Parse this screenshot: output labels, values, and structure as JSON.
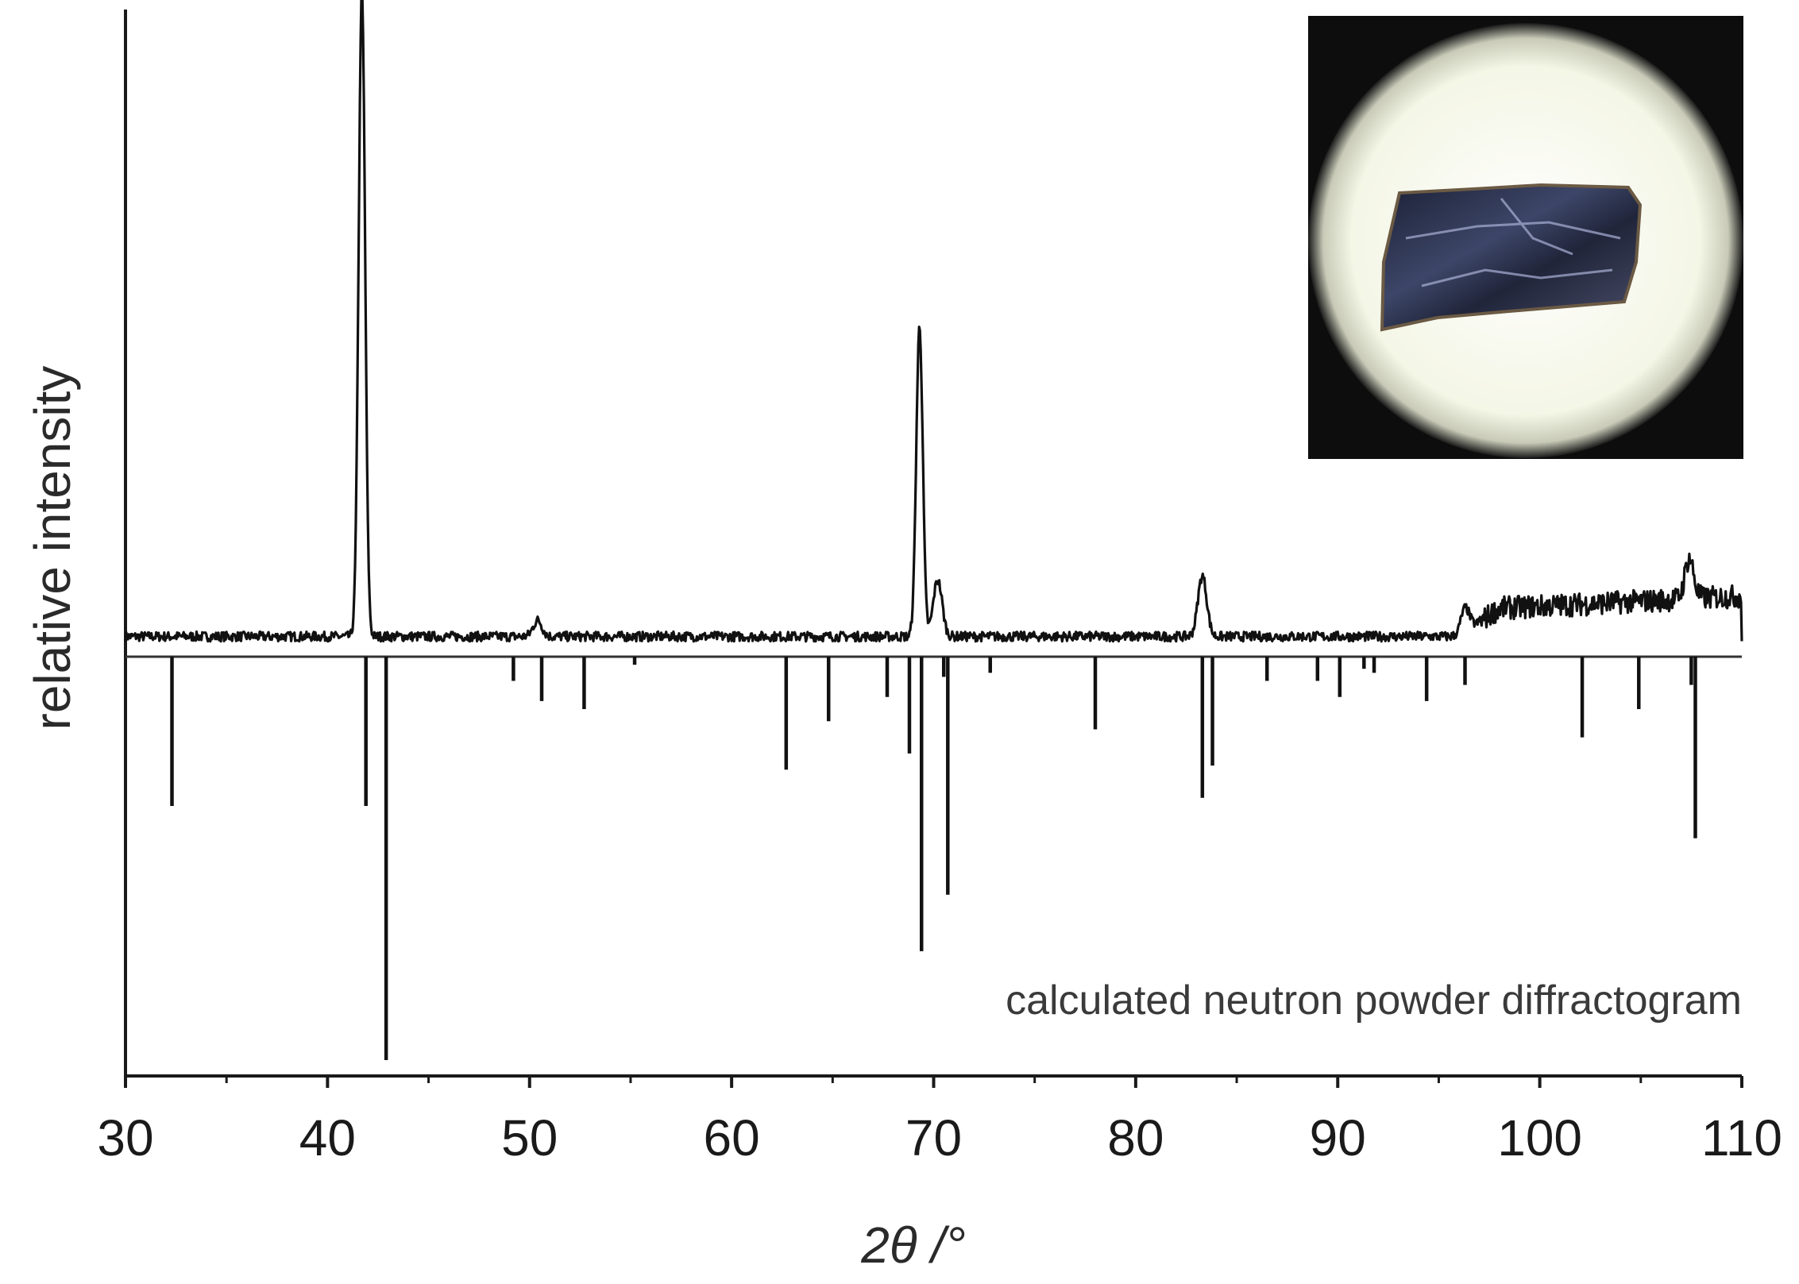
{
  "chart_data": {
    "type": "line",
    "xlabel": "2θ /°",
    "ylabel": "relative intensity",
    "xlim": [
      30,
      110
    ],
    "x_ticks": [
      30,
      40,
      50,
      60,
      70,
      80,
      90,
      100,
      110
    ],
    "x_tick_labels": [
      "30",
      "40",
      "50",
      "60",
      "70",
      "80",
      "90",
      "100",
      "110"
    ],
    "y_ticks": [],
    "ylim": [
      -1.0,
      1.6
    ],
    "grid": false,
    "annotation": "calculated neutron powder diffractogram",
    "series": [
      {
        "role": "measured",
        "baseline": 0.05,
        "noise_amplitude": 0.012,
        "background_rise": [
          [
            30,
            0.0
          ],
          [
            96,
            0.0
          ],
          [
            98,
            0.07
          ],
          [
            110,
            0.1
          ]
        ],
        "peaks": [
          {
            "x": 41.7,
            "y": 1.6
          },
          {
            "x": 69.3,
            "y": 0.77
          },
          {
            "x": 70.2,
            "y": 0.14
          },
          {
            "x": 83.3,
            "y": 0.15
          },
          {
            "x": 107.4,
            "y": 0.1
          },
          {
            "x": 50.4,
            "y": 0.04
          },
          {
            "x": 96.3,
            "y": 0.06
          }
        ]
      },
      {
        "role": "calculated",
        "sticks": [
          {
            "x": 32.3,
            "y": -0.37
          },
          {
            "x": 41.9,
            "y": -0.37
          },
          {
            "x": 42.9,
            "y": -1.0
          },
          {
            "x": 49.2,
            "y": -0.06
          },
          {
            "x": 50.6,
            "y": -0.11
          },
          {
            "x": 52.7,
            "y": -0.13
          },
          {
            "x": 55.2,
            "y": -0.02
          },
          {
            "x": 62.7,
            "y": -0.28
          },
          {
            "x": 64.8,
            "y": -0.16
          },
          {
            "x": 67.7,
            "y": -0.1
          },
          {
            "x": 68.8,
            "y": -0.24
          },
          {
            "x": 69.4,
            "y": -0.73
          },
          {
            "x": 70.5,
            "y": -0.05
          },
          {
            "x": 70.7,
            "y": -0.59
          },
          {
            "x": 72.8,
            "y": -0.04
          },
          {
            "x": 78.0,
            "y": -0.18
          },
          {
            "x": 83.3,
            "y": -0.35
          },
          {
            "x": 83.8,
            "y": -0.27
          },
          {
            "x": 86.5,
            "y": -0.06
          },
          {
            "x": 89.0,
            "y": -0.06
          },
          {
            "x": 90.1,
            "y": -0.1
          },
          {
            "x": 91.3,
            "y": -0.03
          },
          {
            "x": 91.8,
            "y": -0.04
          },
          {
            "x": 94.4,
            "y": -0.11
          },
          {
            "x": 96.3,
            "y": -0.07
          },
          {
            "x": 102.1,
            "y": -0.2
          },
          {
            "x": 104.9,
            "y": -0.13
          },
          {
            "x": 107.5,
            "y": -0.07
          },
          {
            "x": 107.7,
            "y": -0.45
          }
        ]
      }
    ]
  },
  "inset": {
    "background_color": "#0d0d0d",
    "field_color": "#f6f7ea",
    "crystal_color": "#2a2f4a"
  }
}
